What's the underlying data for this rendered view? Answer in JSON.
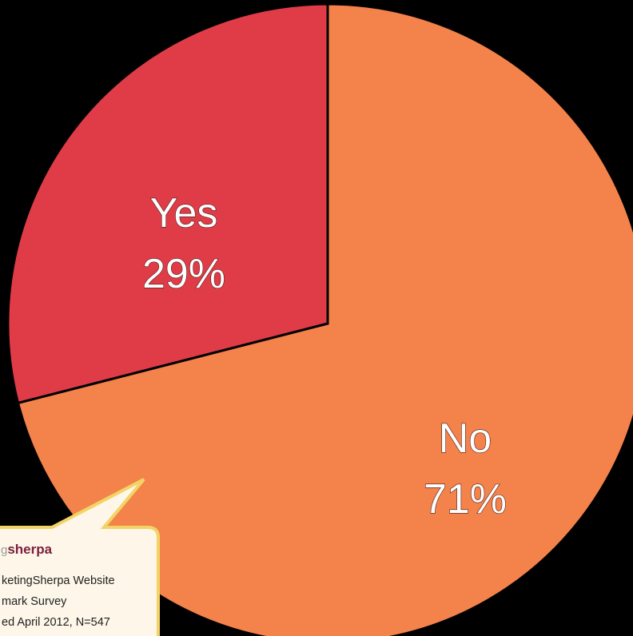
{
  "chart_data": {
    "type": "pie",
    "slices": [
      {
        "label": "Yes",
        "value": 29,
        "value_label": "29%",
        "color": "#e03c48"
      },
      {
        "label": "No",
        "value": 71,
        "value_label": "71%",
        "color": "#f4824b"
      }
    ],
    "start_angle_deg": 0,
    "direction": "counterclockwise"
  },
  "callout": {
    "logo_prefix": "g",
    "logo_brand": "sherpa",
    "lines": [
      "ketingSherpa Website",
      "mark Survey",
      "ed April 2012, N=547"
    ]
  },
  "colors": {
    "background": "#000000",
    "callout_fill": "#fdf6e9",
    "callout_border": "#f2d466",
    "brand": "#7a1f3d"
  }
}
